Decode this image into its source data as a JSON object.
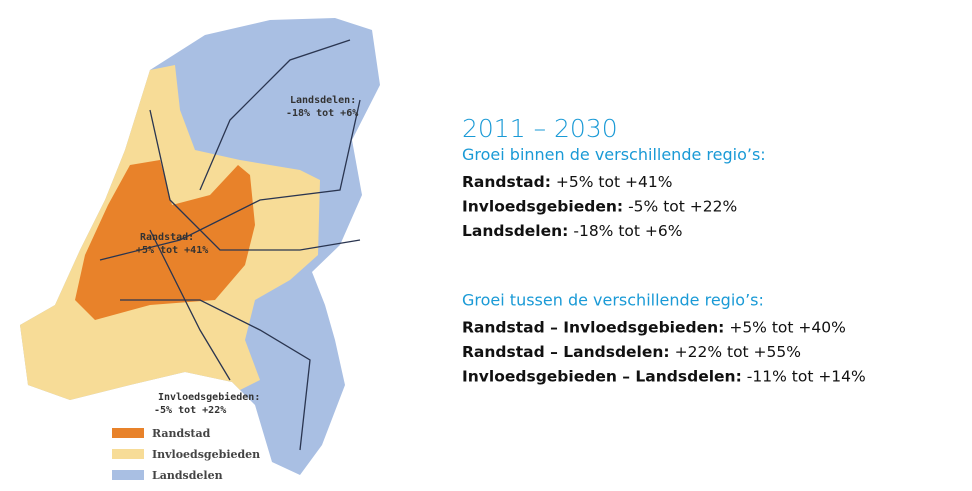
{
  "map": {
    "labels": [
      {
        "name": "Landsdelen:",
        "range": "-18% tot +6%"
      },
      {
        "name": "Randstad:",
        "range": "+5% tot +41%"
      },
      {
        "name": "Invloedsgebieden:",
        "range": "-5% tot +22%"
      }
    ],
    "legend": [
      {
        "label": "Randstad",
        "color": "#e8822a"
      },
      {
        "label": "Invloedsgebieden",
        "color": "#f7dc97"
      },
      {
        "label": "Landsdelen",
        "color": "#a9bfe3"
      }
    ]
  },
  "panel": {
    "period": "2011 – 2030",
    "sections": [
      {
        "heading": "Groei binnen de verschillende regio’s:",
        "rows": [
          {
            "name": "Randstad:",
            "range": "+5% tot +41%"
          },
          {
            "name": "Invloedsgebieden:",
            "range": "-5% tot +22%"
          },
          {
            "name": "Landsdelen:",
            "range": "-18% tot +6%"
          }
        ]
      },
      {
        "heading": "Groei tussen de verschillende regio’s:",
        "rows": [
          {
            "name": "Randstad – Invloedsgebieden:",
            "range": "+5% tot +40%"
          },
          {
            "name": "Randstad – Landsdelen:",
            "range": "+22% tot +55%"
          },
          {
            "name": "Invloedsgebieden – Landsdelen:",
            "range": "-11% tot +14%"
          }
        ]
      }
    ]
  }
}
